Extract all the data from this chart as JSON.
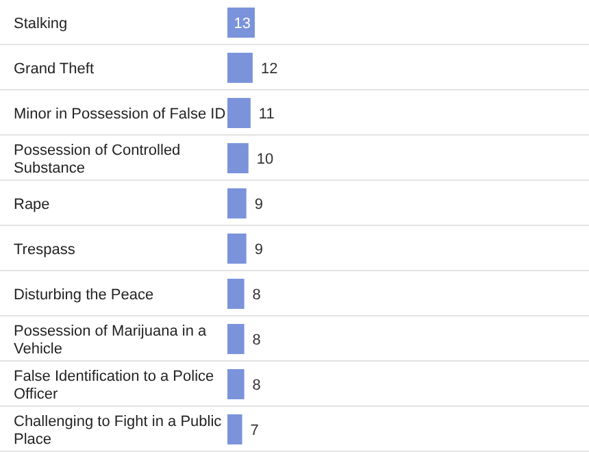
{
  "chart_data": {
    "type": "bar",
    "orientation": "horizontal",
    "data_labels": true,
    "categories": [
      "Stalking",
      "Grand Theft",
      "Minor in Possession of False ID",
      "Possession of Controlled Substance",
      "Rape",
      "Trespass",
      "Disturbing the Peace",
      "Possession of Marijuana in a Vehicle",
      "False Identification to a Police Officer",
      "Challenging to Fight in a Public Place"
    ],
    "values": [
      13,
      12,
      11,
      10,
      9,
      9,
      8,
      8,
      8,
      7
    ],
    "color": "#7b93db"
  }
}
